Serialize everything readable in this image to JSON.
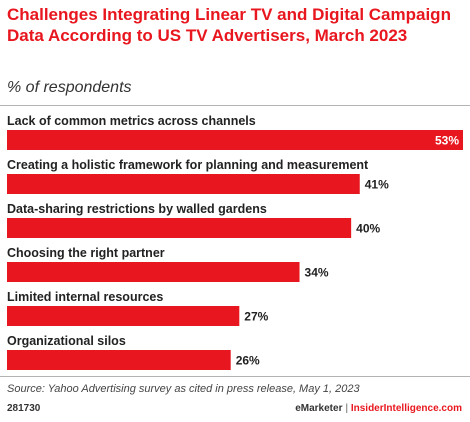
{
  "header": {
    "title": "Challenges Integrating Linear TV and Digital Campaign Data According to US TV Advertisers, March 2023",
    "subtitle": "% of respondents"
  },
  "chart_data": {
    "type": "bar",
    "orientation": "horizontal",
    "categories": [
      "Lack of common metrics across channels",
      "Creating a holistic framework for planning and measurement",
      "Data-sharing restrictions by walled gardens",
      "Choosing the right partner",
      "Limited internal resources",
      "Organizational silos"
    ],
    "values": [
      53,
      41,
      40,
      34,
      27,
      26
    ],
    "value_labels": [
      "53%",
      "41%",
      "40%",
      "34%",
      "27%",
      "26%"
    ],
    "unit": "%",
    "bar_color": "#e8161e",
    "grid": false,
    "legend": "none"
  },
  "footer": {
    "source": "Source: Yahoo Advertising survey as cited in press release, May 1, 2023",
    "chart_id": "281730",
    "brand_left": "eMarketer",
    "separator": "|",
    "brand_right": "InsiderIntelligence.com"
  },
  "colors": {
    "accent": "#e8161e",
    "text": "#222222"
  }
}
